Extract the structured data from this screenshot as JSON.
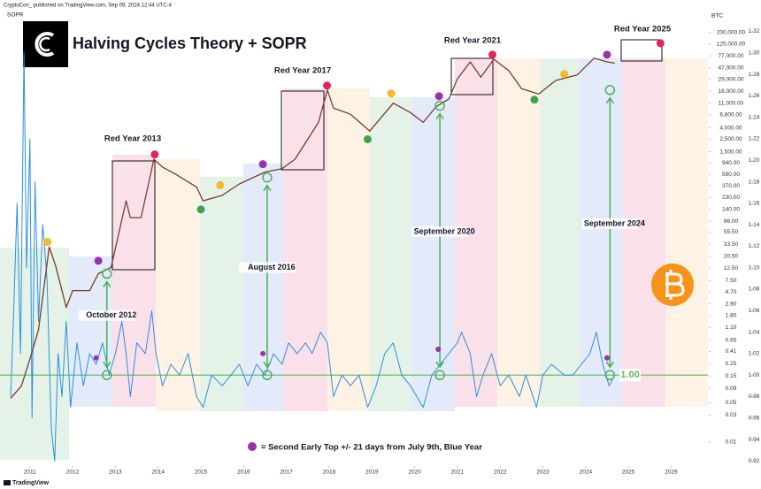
{
  "header": "CryptoCon_ published on TradingView.com, Sep 09, 2024 12:44 UTC-4",
  "footer": "TradingView",
  "chart_data": {
    "type": "line",
    "title": "Halving Cycles Theory + SOPR",
    "log_y": true,
    "grid": false,
    "xlim": [
      2010.3,
      2026.86
    ],
    "xticks": [
      2011,
      2012,
      2013,
      2014,
      2015,
      2016,
      2017,
      2018,
      2019,
      2020,
      2021,
      2022,
      2023,
      2024,
      2025,
      2026
    ],
    "ylim": [
      0.004,
      530000
    ],
    "yticks": [
      {
        "value": 200000,
        "label": "200,000.00"
      },
      {
        "value": 125000,
        "label": "125,000.00"
      },
      {
        "value": 77000,
        "label": "77,000.00"
      },
      {
        "value": 47000,
        "label": "47,000.00"
      },
      {
        "value": 29000,
        "label": "29,000.00"
      },
      {
        "value": 18000,
        "label": "18,000.00"
      },
      {
        "value": 11000,
        "label": "11,000.00"
      },
      {
        "value": 6800,
        "label": "6,800.00"
      },
      {
        "value": 4000,
        "label": "4,000.00"
      },
      {
        "value": 2500,
        "label": "2,500.00"
      },
      {
        "value": 1500,
        "label": "1,500.00"
      },
      {
        "value": 940,
        "label": "940.00"
      },
      {
        "value": 590,
        "label": "590.00"
      },
      {
        "value": 370,
        "label": "370.00"
      },
      {
        "value": 230,
        "label": "230.00"
      },
      {
        "value": 140,
        "label": "140.00"
      },
      {
        "value": 86,
        "label": "86.00"
      },
      {
        "value": 55.5,
        "label": "55.50"
      },
      {
        "value": 33.5,
        "label": "33.50"
      },
      {
        "value": 20.5,
        "label": "20.50"
      },
      {
        "value": 12.5,
        "label": "12.50"
      },
      {
        "value": 7.5,
        "label": "7.50"
      },
      {
        "value": 4.7,
        "label": "4.70"
      },
      {
        "value": 2.9,
        "label": "2.90"
      },
      {
        "value": 1.8,
        "label": "1.80"
      },
      {
        "value": 1.1,
        "label": "1.10"
      },
      0.65,
      0.41,
      0.25,
      0.15,
      0.09,
      0.05,
      0.03,
      0.01
    ],
    "y2lim": [
      0.917,
      1.341
    ],
    "y2ticks": [
      1.32,
      {
        "value": 1.3,
        "label": "1.30"
      },
      1.28,
      1.26,
      1.24,
      1.22,
      {
        "value": 1.2,
        "label": "1.20"
      },
      1.18,
      1.16,
      1.14,
      1.12,
      {
        "value": 1.1,
        "label": "1.10"
      },
      1.08,
      1.06,
      1.04,
      1.02,
      {
        "value": 1,
        "label": "1.00"
      },
      0.98,
      0.96,
      0.94,
      0.92
    ],
    "series": [
      {
        "name": "BTC",
        "color": "#7a3b2e",
        "x": [
          2010.55,
          2010.8,
          2011.0,
          2011.2,
          2011.45,
          2011.6,
          2011.85,
          2012.0,
          2012.4,
          2012.6,
          2012.9,
          2013.25,
          2013.35,
          2013.6,
          2013.9,
          2014.1,
          2014.4,
          2014.9,
          2015.05,
          2015.5,
          2015.9,
          2016.5,
          2016.9,
          2017.2,
          2017.5,
          2017.75,
          2017.96,
          2018.1,
          2018.5,
          2018.95,
          2019.5,
          2019.9,
          2020.2,
          2020.5,
          2020.8,
          2021.0,
          2021.3,
          2021.55,
          2021.85,
          2022.2,
          2022.5,
          2022.9,
          2023.3,
          2023.8,
          2024.2,
          2024.5,
          2024.68
        ],
        "values": [
          0.06,
          0.1,
          0.3,
          1,
          30,
          14,
          2.5,
          5,
          5,
          10,
          13,
          200,
          100,
          100,
          1100,
          800,
          600,
          350,
          200,
          250,
          400,
          650,
          750,
          1100,
          2500,
          5000,
          19000,
          9000,
          7000,
          3500,
          11000,
          7500,
          5000,
          9500,
          13000,
          30000,
          60000,
          32000,
          67000,
          42000,
          20000,
          16000,
          28000,
          35000,
          70000,
          60000,
          57000
        ]
      },
      {
        "name": "SOPR",
        "color": "#2f8ee0",
        "axis": "y2",
        "x": [
          2010.55,
          2010.62,
          2010.7,
          2010.78,
          2010.86,
          2010.92,
          2011.0,
          2011.05,
          2011.12,
          2011.2,
          2011.3,
          2011.4,
          2011.5,
          2011.58,
          2011.66,
          2011.75,
          2011.85,
          2011.95,
          2012.1,
          2012.25,
          2012.4,
          2012.55,
          2012.7,
          2012.85,
          2013.0,
          2013.15,
          2013.25,
          2013.35,
          2013.5,
          2013.7,
          2013.85,
          2013.95,
          2014.1,
          2014.3,
          2014.5,
          2014.7,
          2014.9,
          2015.05,
          2015.25,
          2015.5,
          2015.7,
          2015.9,
          2016.1,
          2016.3,
          2016.5,
          2016.7,
          2016.9,
          2017.05,
          2017.25,
          2017.45,
          2017.6,
          2017.8,
          2017.96,
          2018.1,
          2018.3,
          2018.5,
          2018.7,
          2018.9,
          2019.1,
          2019.3,
          2019.5,
          2019.7,
          2019.9,
          2020.2,
          2020.4,
          2020.6,
          2020.8,
          2021.0,
          2021.1,
          2021.3,
          2021.45,
          2021.6,
          2021.8,
          2022.0,
          2022.2,
          2022.45,
          2022.6,
          2022.85,
          2023.0,
          2023.2,
          2023.5,
          2023.7,
          2023.9,
          2024.1,
          2024.25,
          2024.4,
          2024.55,
          2024.68
        ],
        "values": [
          0.98,
          1.06,
          1.16,
          1.02,
          1.3,
          1.1,
          1.22,
          0.96,
          1.18,
          1.05,
          1.14,
          1.09,
          0.95,
          0.92,
          1.02,
          0.98,
          1.05,
          0.97,
          1.03,
          0.99,
          1.02,
          1.01,
          1.03,
          1,
          1.02,
          1.05,
          1.02,
          0.98,
          1.03,
          1.02,
          1.06,
          1.02,
          0.99,
          1.01,
          1,
          1.02,
          0.98,
          0.97,
          1,
          0.99,
          1,
          1.01,
          0.99,
          1.01,
          1,
          1.02,
          1.01,
          1.03,
          1.02,
          1.03,
          1.02,
          1.04,
          1.03,
          0.98,
          1,
          0.99,
          1,
          0.97,
          0.99,
          1.02,
          1.03,
          1,
          0.99,
          0.97,
          1,
          1.01,
          1.02,
          1.03,
          1.04,
          1.02,
          0.98,
          1,
          1.02,
          0.99,
          1,
          0.98,
          1,
          0.97,
          1,
          1.01,
          1,
          1,
          1.01,
          1.02,
          1.04,
          1.01,
          0.99,
          1
        ]
      }
    ],
    "reference_line": {
      "value": 1,
      "label": "1.00",
      "color": "#5cb85c"
    },
    "price_markers": [
      {
        "x": 2011.41,
        "value": 37,
        "color": "#f5b82e"
      },
      {
        "x": 2012.6,
        "value": 17,
        "color": "#9b2fae"
      },
      {
        "x": 2013.92,
        "value": 1340,
        "color": "#e0245e"
      },
      {
        "x": 2015.0,
        "value": 140,
        "color": "#3ea44b"
      },
      {
        "x": 2015.45,
        "value": 380,
        "color": "#f5b82e"
      },
      {
        "x": 2016.45,
        "value": 900,
        "color": "#9b2fae"
      },
      {
        "x": 2017.95,
        "value": 22700,
        "color": "#e0245e"
      },
      {
        "x": 2018.9,
        "value": 2500,
        "color": "#3ea44b"
      },
      {
        "x": 2019.45,
        "value": 16400,
        "color": "#f5b82e"
      },
      {
        "x": 2020.57,
        "value": 14700,
        "color": "#9b2fae"
      },
      {
        "x": 2021.82,
        "value": 80700,
        "color": "#e0245e"
      },
      {
        "x": 2022.8,
        "value": 12700,
        "color": "#3ea44b"
      },
      {
        "x": 2023.5,
        "value": 36400,
        "color": "#f5b82e"
      },
      {
        "x": 2024.5,
        "value": 80700,
        "color": "#9b2fae"
      },
      {
        "x": 2025.75,
        "value": 129000,
        "color": "#e0245e"
      }
    ],
    "sopr_markers": [
      {
        "x": 2012.55,
        "value": 1.016,
        "color": "#9b2fae"
      },
      {
        "x": 2016.45,
        "value": 1.02,
        "color": "#9b2fae"
      },
      {
        "x": 2020.55,
        "value": 1.024,
        "color": "#9b2fae"
      },
      {
        "x": 2024.5,
        "value": 1.016,
        "color": "#9b2fae"
      }
    ],
    "arrows": [
      {
        "label": "October 2012",
        "x": 2012.8,
        "price": 10,
        "sopr": 1
      },
      {
        "label": "August 2016",
        "x": 2016.55,
        "price": 520,
        "sopr": 1
      },
      {
        "label": "September 2020",
        "x": 2020.59,
        "price": 9900,
        "sopr": 1
      },
      {
        "label": "September 2024",
        "x": 2024.57,
        "price": 18900,
        "sopr": 1
      }
    ],
    "annotations": [
      "Red Year 2013",
      "Red Year 2017",
      "Red Year 2021",
      "Red Year 2025"
    ],
    "legend_note": "= Second Early Top +/- 21 days from July 9th, Blue Year"
  }
}
